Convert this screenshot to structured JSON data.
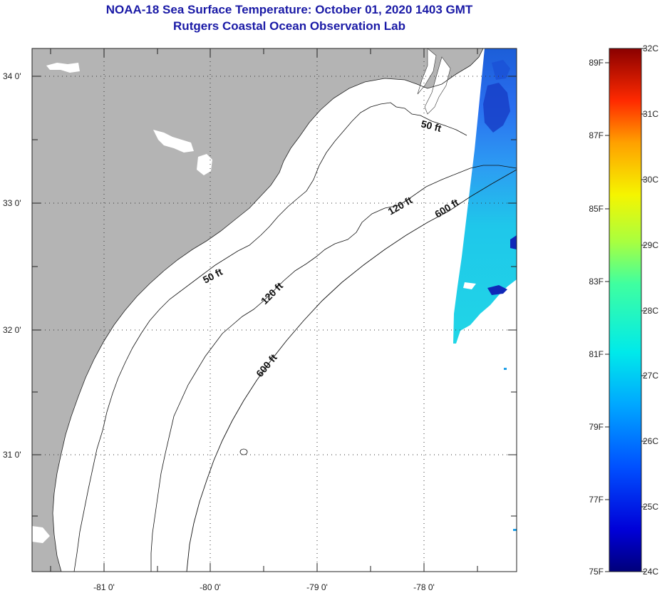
{
  "title": "NOAA-18 Sea Surface Temperature:  October 01, 2020 1403 GMT",
  "subtitle": "Rutgers Coastal Ocean Observation Lab",
  "lon_labels": [
    "-81 0'",
    "-80 0'",
    "-79 0'",
    "-78 0'"
  ],
  "lat_labels": [
    "34 0'",
    "33 0'",
    "32 0'",
    "31 0'"
  ],
  "contour_labels": [
    "50 ft",
    "120 ft",
    "600 ft",
    "50 ft",
    "120 ft",
    "600 ft"
  ],
  "colorbar": {
    "fahrenheit": [
      "89F",
      "87F",
      "85F",
      "83F",
      "81F",
      "79F",
      "77F",
      "75F"
    ],
    "celsius": [
      "32C",
      "31C",
      "30C",
      "29C",
      "28C",
      "27C",
      "26C",
      "25C",
      "24C"
    ]
  },
  "colors": {
    "land": "#b4b4b4",
    "title": "#1a1aa6",
    "ocean": "#ffffff"
  }
}
